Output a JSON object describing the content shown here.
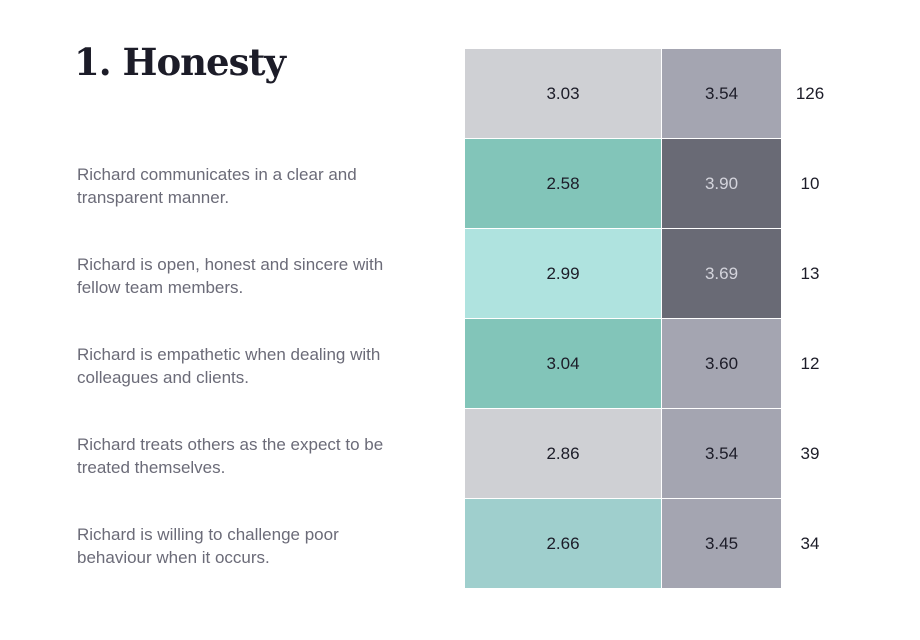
{
  "title": "1. Honesty",
  "summary": {
    "cells": [
      {
        "value": "3.03",
        "fill": "#cfd0d4"
      },
      {
        "value": "3.54",
        "fill": "#a4a5b1"
      }
    ],
    "count": "126"
  },
  "rows": [
    {
      "label": "Richard communicates in a clear and transparent manner.",
      "cells": [
        {
          "value": "2.58",
          "fill": "#82c5b9"
        },
        {
          "value": "3.90",
          "fill": "#696a75"
        }
      ],
      "count": "10"
    },
    {
      "label": "Richard is open, honest and sincere with fellow team members.",
      "cells": [
        {
          "value": "2.99",
          "fill": "#afe3df"
        },
        {
          "value": "3.69",
          "fill": "#696a75"
        }
      ],
      "count": "13"
    },
    {
      "label": "Richard is empathetic when dealing with colleagues and clients.",
      "cells": [
        {
          "value": "3.04",
          "fill": "#82c5b9"
        },
        {
          "value": "3.60",
          "fill": "#a4a5b1"
        }
      ],
      "count": "12"
    },
    {
      "label": "Richard treats others as the expect to be treated themselves.",
      "cells": [
        {
          "value": "2.86",
          "fill": "#cfd0d4"
        },
        {
          "value": "3.54",
          "fill": "#a4a5b1"
        }
      ],
      "count": "39"
    },
    {
      "label": "Richard is willing to challenge poor behaviour when it occurs.",
      "cells": [
        {
          "value": "2.66",
          "fill": "#9fcfcd"
        },
        {
          "value": "3.45",
          "fill": "#a4a5b1"
        }
      ],
      "count": "34"
    }
  ]
}
